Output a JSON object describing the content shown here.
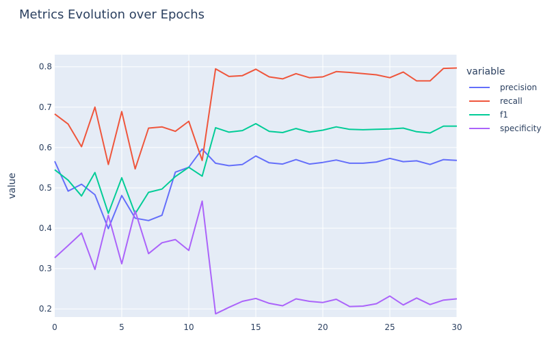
{
  "chart_data": {
    "type": "line",
    "title": "Metrics Evolution over Epochs",
    "xlabel": "",
    "ylabel": "value",
    "xlim": [
      0,
      30
    ],
    "ylim": [
      0.18,
      0.83
    ],
    "x_ticks": [
      0,
      5,
      10,
      15,
      20,
      25,
      30
    ],
    "y_ticks": [
      0.2,
      0.3,
      0.4,
      0.5,
      0.6,
      0.7,
      0.8
    ],
    "grid": true,
    "legend_title": "variable",
    "legend_placement": "right",
    "plot_background": "#e5ecf6",
    "x": [
      0,
      1,
      2,
      3,
      4,
      5,
      6,
      7,
      8,
      9,
      10,
      11,
      12,
      13,
      14,
      15,
      16,
      17,
      18,
      19,
      20,
      21,
      22,
      23,
      24,
      25,
      26,
      27,
      28,
      29,
      30
    ],
    "series": [
      {
        "name": "precision",
        "color": "#636efa",
        "values": [
          0.566,
          0.492,
          0.509,
          0.483,
          0.399,
          0.481,
          0.425,
          0.419,
          0.432,
          0.539,
          0.551,
          0.596,
          0.561,
          0.555,
          0.558,
          0.579,
          0.562,
          0.559,
          0.57,
          0.559,
          0.563,
          0.569,
          0.561,
          0.561,
          0.564,
          0.573,
          0.565,
          0.567,
          0.558,
          0.57,
          0.568
        ]
      },
      {
        "name": "recall",
        "color": "#ef553b",
        "values": [
          0.683,
          0.658,
          0.602,
          0.7,
          0.558,
          0.689,
          0.547,
          0.648,
          0.651,
          0.64,
          0.665,
          0.568,
          0.795,
          0.776,
          0.778,
          0.794,
          0.775,
          0.77,
          0.783,
          0.773,
          0.775,
          0.788,
          0.786,
          0.783,
          0.78,
          0.773,
          0.787,
          0.765,
          0.765,
          0.796,
          0.797
        ]
      },
      {
        "name": "f1",
        "color": "#00cc96",
        "values": [
          0.545,
          0.519,
          0.48,
          0.538,
          0.437,
          0.525,
          0.436,
          0.489,
          0.497,
          0.528,
          0.551,
          0.529,
          0.649,
          0.638,
          0.642,
          0.659,
          0.64,
          0.637,
          0.647,
          0.638,
          0.643,
          0.651,
          0.645,
          0.644,
          0.645,
          0.646,
          0.648,
          0.639,
          0.636,
          0.653,
          0.653
        ]
      },
      {
        "name": "specificity",
        "color": "#ab63fa",
        "values": [
          0.327,
          0.357,
          0.388,
          0.298,
          0.432,
          0.312,
          0.443,
          0.337,
          0.364,
          0.372,
          0.345,
          0.467,
          0.188,
          0.204,
          0.219,
          0.226,
          0.214,
          0.208,
          0.225,
          0.219,
          0.216,
          0.224,
          0.206,
          0.207,
          0.213,
          0.232,
          0.21,
          0.227,
          0.211,
          0.222,
          0.225
        ]
      }
    ]
  }
}
